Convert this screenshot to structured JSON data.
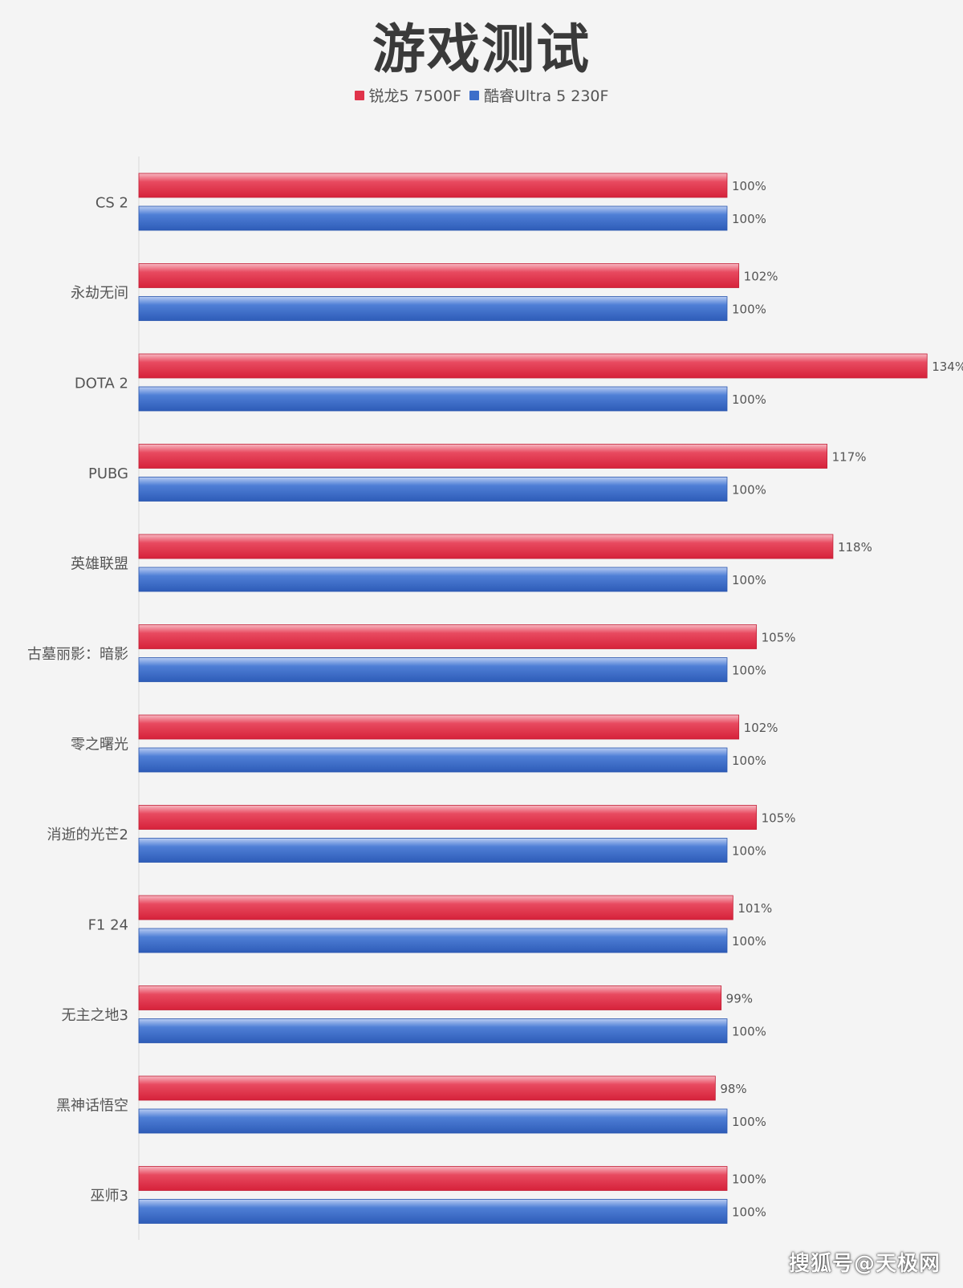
{
  "chart_data": {
    "type": "bar",
    "orientation": "horizontal",
    "title": "游戏测试",
    "categories": [
      "CS 2",
      "永劫无间",
      "DOTA 2",
      "PUBG",
      "英雄联盟",
      "古墓丽影：暗影",
      "零之曙光",
      "消逝的光芒2",
      "F1 24",
      "无主之地3",
      "黑神话悟空",
      "巫师3"
    ],
    "series": [
      {
        "name": "锐龙5 7500F",
        "values": [
          100,
          102,
          134,
          117,
          118,
          105,
          102,
          105,
          101,
          99,
          98,
          100
        ],
        "labels": [
          "100%",
          "102%",
          "134%",
          "117%",
          "118%",
          "105%",
          "102%",
          "105%",
          "101%",
          "99%",
          "98%",
          "100%"
        ],
        "color": "#e0334a"
      },
      {
        "name": "酷睿Ultra 5 230F",
        "values": [
          100,
          100,
          100,
          100,
          100,
          100,
          100,
          100,
          100,
          100,
          100,
          100
        ],
        "labels": [
          "100%",
          "100%",
          "100%",
          "100%",
          "100%",
          "100%",
          "100%",
          "100%",
          "100%",
          "100%",
          "100%",
          "100%"
        ],
        "color": "#3d6ec9"
      }
    ],
    "xlim": [
      0,
      134
    ],
    "grid": false,
    "legend_position": "top-center"
  },
  "watermark": "搜狐号@天极网"
}
